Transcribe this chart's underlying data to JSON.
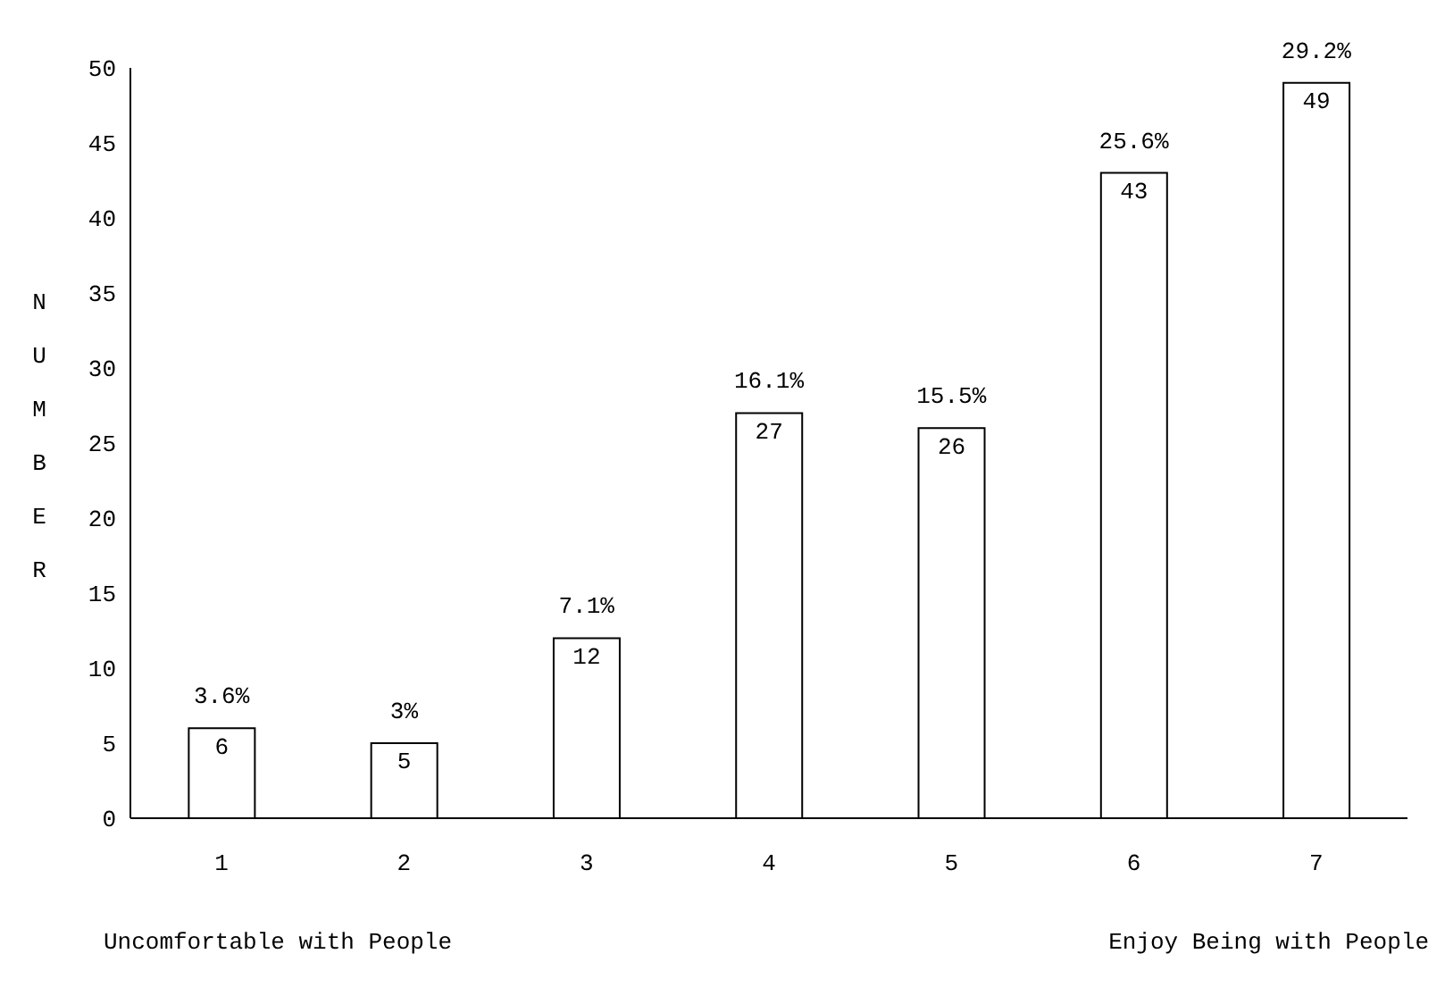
{
  "chart_data": {
    "type": "bar",
    "ylabel": "NUMBER",
    "categories": [
      "1",
      "2",
      "3",
      "4",
      "5",
      "6",
      "7"
    ],
    "values": [
      6,
      5,
      12,
      27,
      26,
      43,
      49
    ],
    "data_labels": true,
    "color": "#ffffff",
    "ylim": [
      0,
      50
    ],
    "yticks": [
      0,
      5,
      10,
      15,
      20,
      25,
      30,
      35,
      40,
      45,
      50
    ],
    "annotations": [
      {
        "text": "3.6%",
        "x": "1",
        "y": 6
      },
      {
        "text": "3%",
        "x": "2",
        "y": 5
      },
      {
        "text": "7.1%",
        "x": "3",
        "y": 12
      },
      {
        "text": "16.1%",
        "x": "4",
        "y": 27
      },
      {
        "text": "15.5%",
        "x": "5",
        "y": 26
      },
      {
        "text": "25.6%",
        "x": "6",
        "y": 43
      },
      {
        "text": "29.2%",
        "x": "7",
        "y": 49
      },
      "Uncomfortable with People",
      "Enjoy Being with People"
    ]
  }
}
